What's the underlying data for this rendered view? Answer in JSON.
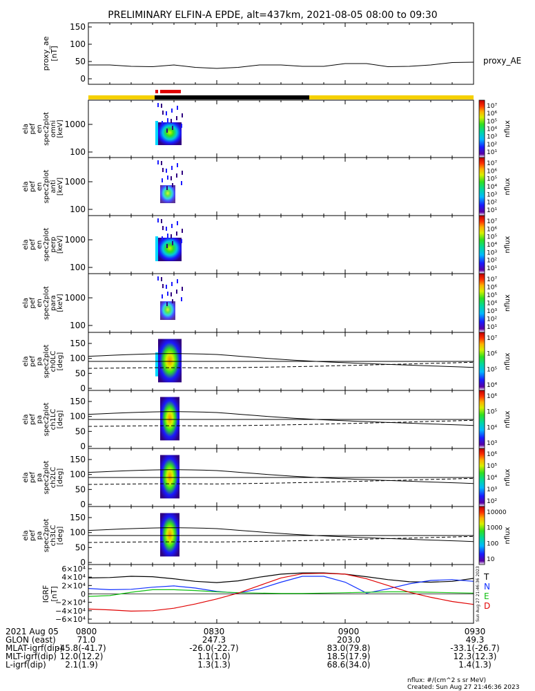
{
  "title": "PRELIMINARY ELFIN-A EPDE, alt=437km, 2021-08-05 08:00 to 09:30",
  "colors": {
    "status_yellow": "#f5d000",
    "status_black": "#000000",
    "status_red": "#e00000",
    "field_T": "#000000",
    "field_N": "#1030ff",
    "field_E": "#10c010",
    "field_D": "#e00000"
  },
  "chart_data": [
    {
      "type": "line",
      "panel": "proxy_ae",
      "ylabel": [
        "proxy_ae",
        "[nT]"
      ],
      "legend": "proxy_AE",
      "y_ticks": [
        "150",
        "100",
        "50",
        "0"
      ],
      "ylim": [
        0,
        150
      ],
      "x_minutes": [
        0,
        5,
        10,
        15,
        20,
        25,
        30,
        35,
        40,
        45,
        50,
        55,
        60,
        65,
        70,
        75,
        80,
        85,
        90
      ],
      "values": [
        40,
        40,
        36,
        35,
        40,
        33,
        30,
        33,
        40,
        40,
        36,
        36,
        44,
        44,
        35,
        36,
        40,
        47,
        48
      ]
    },
    {
      "type": "heatmap",
      "panel": "en_spec2plot_omni",
      "ylabel": [
        "ela",
        "pef",
        "en",
        "spec2plot",
        "omni",
        "[keV]"
      ],
      "y_ticks": [
        "1000",
        "100"
      ],
      "colorbar_label": "nflux",
      "colorbar_ticks": [
        "10⁷",
        "10⁶",
        "10⁵",
        "10⁴",
        "10³",
        "10²",
        "10¹"
      ]
    },
    {
      "type": "heatmap",
      "panel": "en_spec2plot_anti",
      "ylabel": [
        "ela",
        "pef",
        "en",
        "spec2plot",
        "anti",
        "[keV]"
      ],
      "y_ticks": [
        "1000",
        "100"
      ],
      "colorbar_label": "nflux",
      "colorbar_ticks": [
        "10⁷",
        "10⁶",
        "10⁵",
        "10⁴",
        "10³",
        "10²",
        "10¹"
      ]
    },
    {
      "type": "heatmap",
      "panel": "en_spec2plot_perp",
      "ylabel": [
        "ela",
        "pef",
        "en",
        "spec2plot",
        "perp",
        "[keV]"
      ],
      "y_ticks": [
        "1000",
        "100"
      ],
      "colorbar_label": "nflux",
      "colorbar_ticks": [
        "10⁷",
        "10⁶",
        "10⁵",
        "10⁴",
        "10³",
        "10²",
        "10¹"
      ]
    },
    {
      "type": "heatmap",
      "panel": "en_spec2plot_para",
      "ylabel": [
        "ela",
        "pef",
        "en",
        "spec2plot",
        "para",
        "[keV]"
      ],
      "y_ticks": [
        "1000",
        "100"
      ],
      "colorbar_label": "nflux",
      "colorbar_ticks": [
        "10⁷",
        "10⁶",
        "10⁵",
        "10⁴",
        "10³",
        "10²",
        "10¹"
      ]
    },
    {
      "type": "heatmap",
      "panel": "pa_spec2plot_ch0LC",
      "ylabel": [
        "ela",
        "pef",
        "pa",
        "spec2plot",
        "ch0LC",
        "[deg]"
      ],
      "y_ticks": [
        "150",
        "100",
        "50",
        "0"
      ],
      "ylim": [
        0,
        180
      ],
      "colorbar_label": "nflux",
      "colorbar_ticks": [
        "10⁷",
        "10⁶",
        "10⁵",
        "10⁴"
      ]
    },
    {
      "type": "heatmap",
      "panel": "pa_spec2plot_ch1LC",
      "ylabel": [
        "ela",
        "pef",
        "pa",
        "spec2plot",
        "ch1LC",
        "[deg]"
      ],
      "y_ticks": [
        "150",
        "100",
        "50",
        "0"
      ],
      "ylim": [
        0,
        180
      ],
      "colorbar_label": "nflux",
      "colorbar_ticks": [
        "10⁶",
        "10⁵",
        "10⁴",
        "10³"
      ]
    },
    {
      "type": "heatmap",
      "panel": "pa_spec2plot_ch2LC",
      "ylabel": [
        "ela",
        "pef",
        "pa",
        "spec2plot",
        "ch2LC",
        "[deg]"
      ],
      "y_ticks": [
        "150",
        "100",
        "50",
        "0"
      ],
      "ylim": [
        0,
        180
      ],
      "colorbar_label": "nflux",
      "colorbar_ticks": [
        "10⁶",
        "10⁵",
        "10⁴",
        "10³",
        "10²"
      ]
    },
    {
      "type": "heatmap",
      "panel": "pa_spec2plot_ch3LC",
      "ylabel": [
        "ela",
        "pef",
        "pa",
        "spec2plot",
        "ch3LC",
        "[deg]"
      ],
      "y_ticks": [
        "150",
        "100",
        "50",
        "0"
      ],
      "ylim": [
        0,
        180
      ],
      "colorbar_label": "nflux",
      "colorbar_ticks": [
        "10000",
        "1000",
        "100",
        "10"
      ]
    },
    {
      "type": "line",
      "panel": "igrf",
      "ylabel": [
        "IGRF",
        "[nT]"
      ],
      "y_ticks": [
        "6×10⁴",
        "4×10⁴",
        "2×10⁴",
        "0",
        "−2×10⁴",
        "−4×10⁴",
        "−6×10⁴"
      ],
      "ylim": [
        -60000,
        60000
      ],
      "x_minutes": [
        0,
        5,
        10,
        15,
        20,
        25,
        30,
        35,
        40,
        45,
        50,
        55,
        60,
        65,
        70,
        75,
        80,
        85,
        90
      ],
      "series": [
        {
          "name": "T",
          "values": [
            38000,
            39000,
            42000,
            41000,
            36000,
            30000,
            27000,
            31000,
            40000,
            47000,
            50000,
            50000,
            47000,
            41000,
            34000,
            29000,
            28000,
            30000,
            37000
          ]
        },
        {
          "name": "N",
          "values": [
            13000,
            10000,
            11000,
            16000,
            19000,
            14000,
            6000,
            2000,
            12000,
            28000,
            42000,
            42000,
            28000,
            2000,
            12000,
            24000,
            32000,
            34000,
            30000
          ]
        },
        {
          "name": "E",
          "values": [
            -6000,
            -4000,
            4000,
            10000,
            10000,
            8000,
            5000,
            3000,
            2000,
            1000,
            1000,
            2000,
            3000,
            4000,
            5000,
            5000,
            4000,
            3000,
            2000
          ]
        },
        {
          "name": "D",
          "values": [
            -36000,
            -38000,
            -41000,
            -40000,
            -34000,
            -24000,
            -12000,
            2000,
            20000,
            38000,
            48000,
            49000,
            47000,
            36000,
            20000,
            4000,
            -8000,
            -18000,
            -25000
          ]
        }
      ],
      "side_text": "Sun Aug 27 21:46:36 2023"
    }
  ],
  "x_axis": {
    "ticks": [
      "0800",
      "0830",
      "0900",
      "0930"
    ],
    "rows": [
      {
        "label": "2021 Aug 05",
        "values": [
          "0800",
          "0830",
          "0900",
          "0930"
        ]
      },
      {
        "label": "GLON (east)",
        "values": [
          "71.0",
          "247.3",
          "203.0",
          "49.3"
        ]
      },
      {
        "label": "MLAT-igrf(dip)",
        "values": "-45.8(-41.7)",
        "others": [
          "-26.0(-22.7)",
          "83.0(79.8)",
          "-33.1(-26.7)"
        ]
      },
      {
        "label": "MLT-igrf(dip)",
        "first": "12.0(12.2)",
        "others": [
          "1.1(1.0)",
          "18.5(17.9)",
          "12.3(12.3)"
        ]
      },
      {
        "label": "L-igrf(dip)",
        "first": "2.1(1.9)",
        "others": [
          "1.3(1.3)",
          "68.6(34.0)",
          "1.4(1.3)"
        ]
      }
    ]
  },
  "footer": {
    "units": "nflux: #/(cm^2 s sr MeV)",
    "created": "Created: Sun Aug 27 21:46:36 2023"
  }
}
